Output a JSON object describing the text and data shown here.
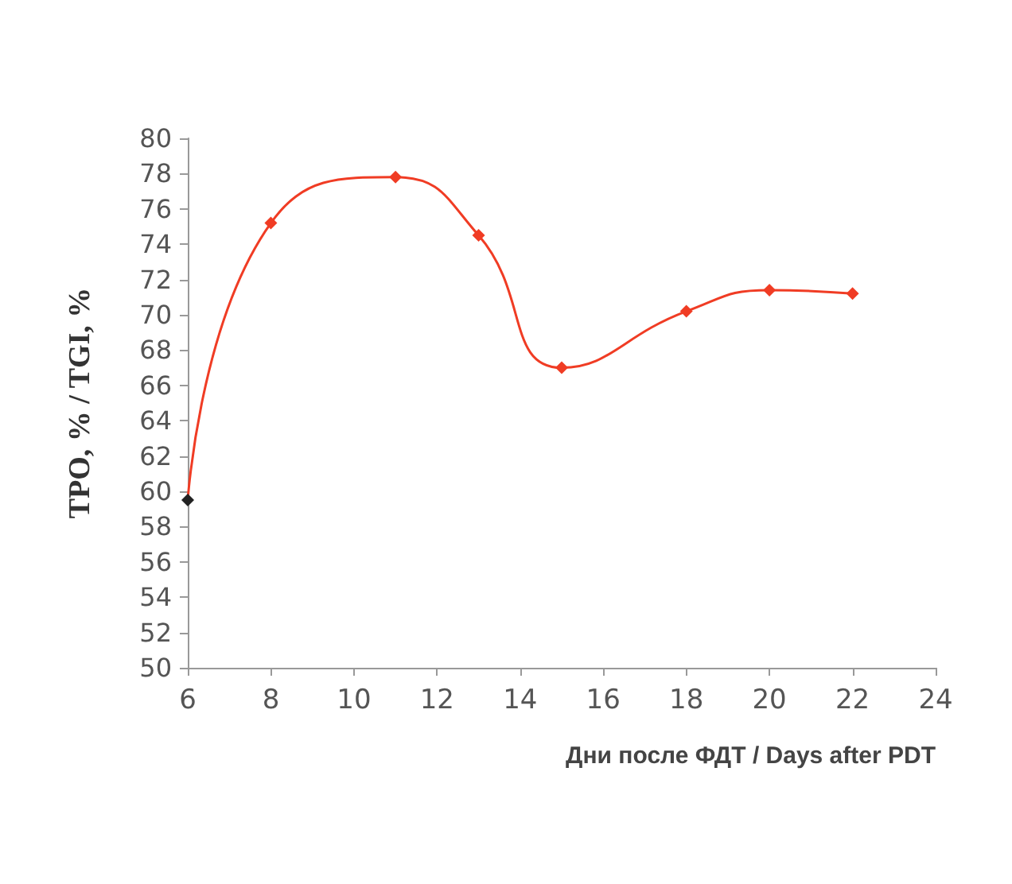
{
  "chart_data": {
    "type": "line",
    "xlabel": "Дни после ФДТ / Days after PDT",
    "ylabel": "TPO, % / TGI, %",
    "x": [
      6,
      8,
      11,
      13,
      15,
      18,
      20,
      22
    ],
    "series": [
      {
        "color": "#f03c24",
        "colors": [
          "#222222",
          "#f03c24",
          "#f03c24",
          "#f03c24",
          "#f03c24",
          "#f03c24",
          "#f03c24",
          "#f03c24"
        ],
        "values": [
          59.5,
          75.2,
          77.8,
          74.5,
          67.0,
          70.2,
          71.4,
          71.2
        ]
      }
    ],
    "xlim": [
      6,
      24
    ],
    "xticks": [
      6,
      8,
      10,
      12,
      14,
      16,
      18,
      20,
      22,
      24
    ],
    "ylim": [
      50,
      80
    ],
    "yticks": [
      50,
      52,
      54,
      56,
      58,
      60,
      62,
      64,
      66,
      68,
      70,
      72,
      74,
      76,
      78,
      80
    ],
    "grid": false,
    "marker": "diamond",
    "line_style": "solid"
  }
}
